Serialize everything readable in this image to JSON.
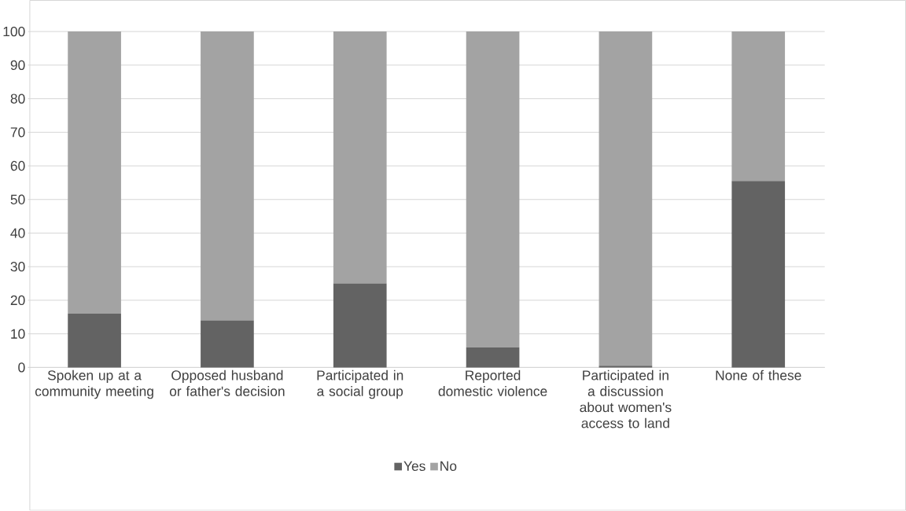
{
  "chart_data": {
    "type": "bar",
    "stacked": true,
    "categories": [
      "Spoken up at a community meeting",
      "Opposed husband or father's decision",
      "Participated in a social group",
      "Reported domestic violence",
      "Participated in a discussion about women's access to land",
      "None of these"
    ],
    "series": [
      {
        "name": "Yes",
        "color": "#636363",
        "values": [
          16,
          14,
          25,
          6,
          0.5,
          55.5
        ]
      },
      {
        "name": "No",
        "color": "#a3a3a3",
        "values": [
          84,
          86,
          75,
          94,
          99.5,
          44.5
        ]
      }
    ],
    "ylim": [
      0,
      100
    ],
    "yticks": [
      0,
      10,
      20,
      30,
      40,
      50,
      60,
      70,
      80,
      90,
      100
    ],
    "grid": "y",
    "legend": "bottom"
  }
}
